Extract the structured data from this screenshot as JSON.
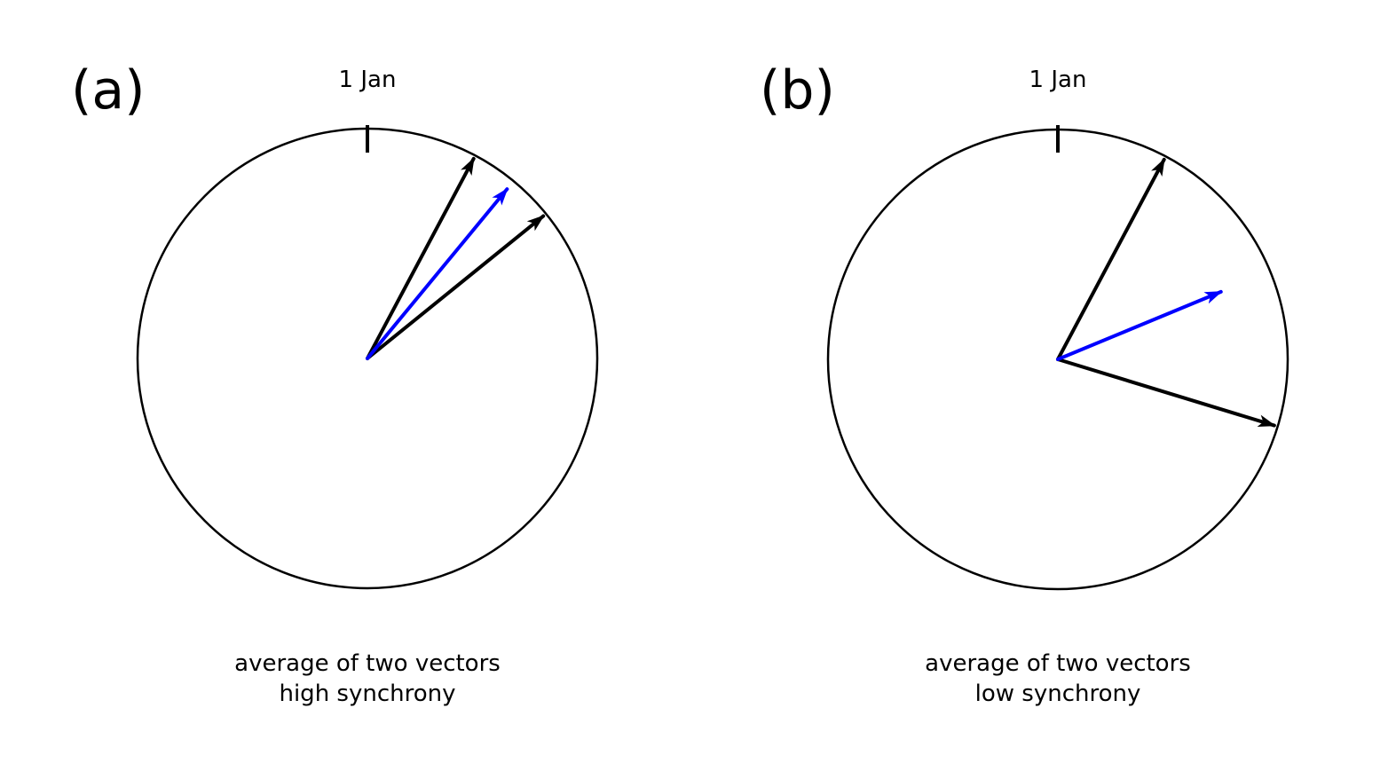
{
  "colors": {
    "circle": "#000000",
    "vector": "#000000",
    "average": "#0000ff"
  },
  "panels": [
    {
      "label": "(a)",
      "top_label": "1 Jan",
      "caption_line1": "average of two vectors",
      "caption_line2": "high synchrony",
      "vectors_deg": [
        28,
        51
      ],
      "average_deg": 39.5,
      "average_length": 0.97
    },
    {
      "label": "(b)",
      "top_label": "1 Jan",
      "caption_line1": "average of two vectors",
      "caption_line2": "low synchrony",
      "vectors_deg": [
        28,
        107
      ],
      "average_deg": 67.5,
      "average_length": 0.78
    }
  ]
}
